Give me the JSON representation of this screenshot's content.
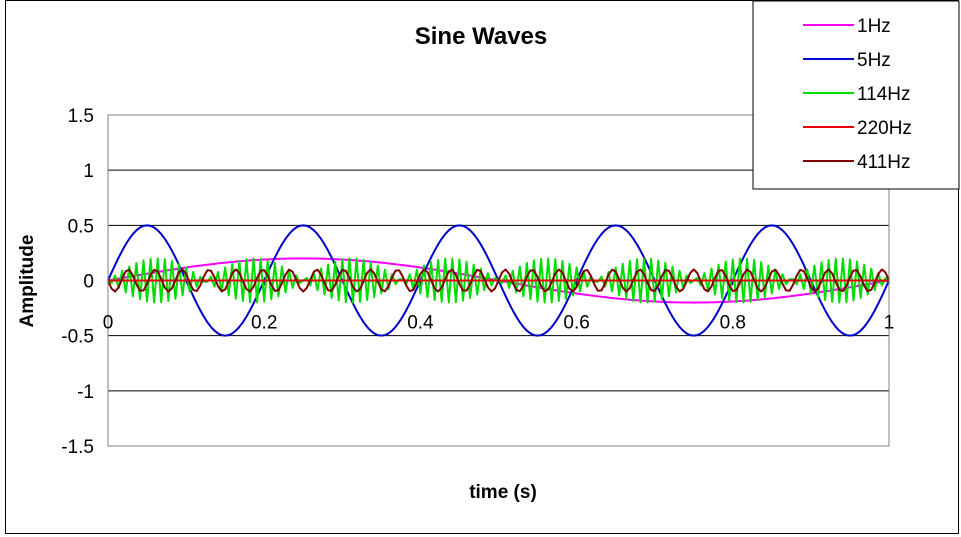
{
  "chart_data": {
    "type": "line",
    "title": "Sine Waves",
    "xlabel": "time (s)",
    "ylabel": "Amplitude",
    "xlim": [
      0,
      1
    ],
    "ylim": [
      -1.5,
      1.5
    ],
    "x_ticks": [
      "0",
      "0.2",
      "0.4",
      "0.6",
      "0.8",
      "1"
    ],
    "y_ticks": [
      "1.5",
      "1",
      "0.5",
      "0",
      "-0.5",
      "-1",
      "-1.5"
    ],
    "grid": "horizontal",
    "legend_position": "top-right",
    "series": [
      {
        "name": "1Hz",
        "frequency_hz": 1,
        "amplitude": 0.2,
        "color": "#ff00ff"
      },
      {
        "name": "5Hz",
        "frequency_hz": 5,
        "amplitude": 0.5,
        "color": "#0000cc"
      },
      {
        "name": "114Hz",
        "frequency_hz": 114,
        "amplitude": 0.2,
        "color": "#00dd00"
      },
      {
        "name": "220Hz",
        "frequency_hz": 220,
        "amplitude": 0.28,
        "color": "#ee0000"
      },
      {
        "name": "411Hz",
        "frequency_hz": 411,
        "amplitude": 0.1,
        "color": "#800000"
      }
    ]
  }
}
